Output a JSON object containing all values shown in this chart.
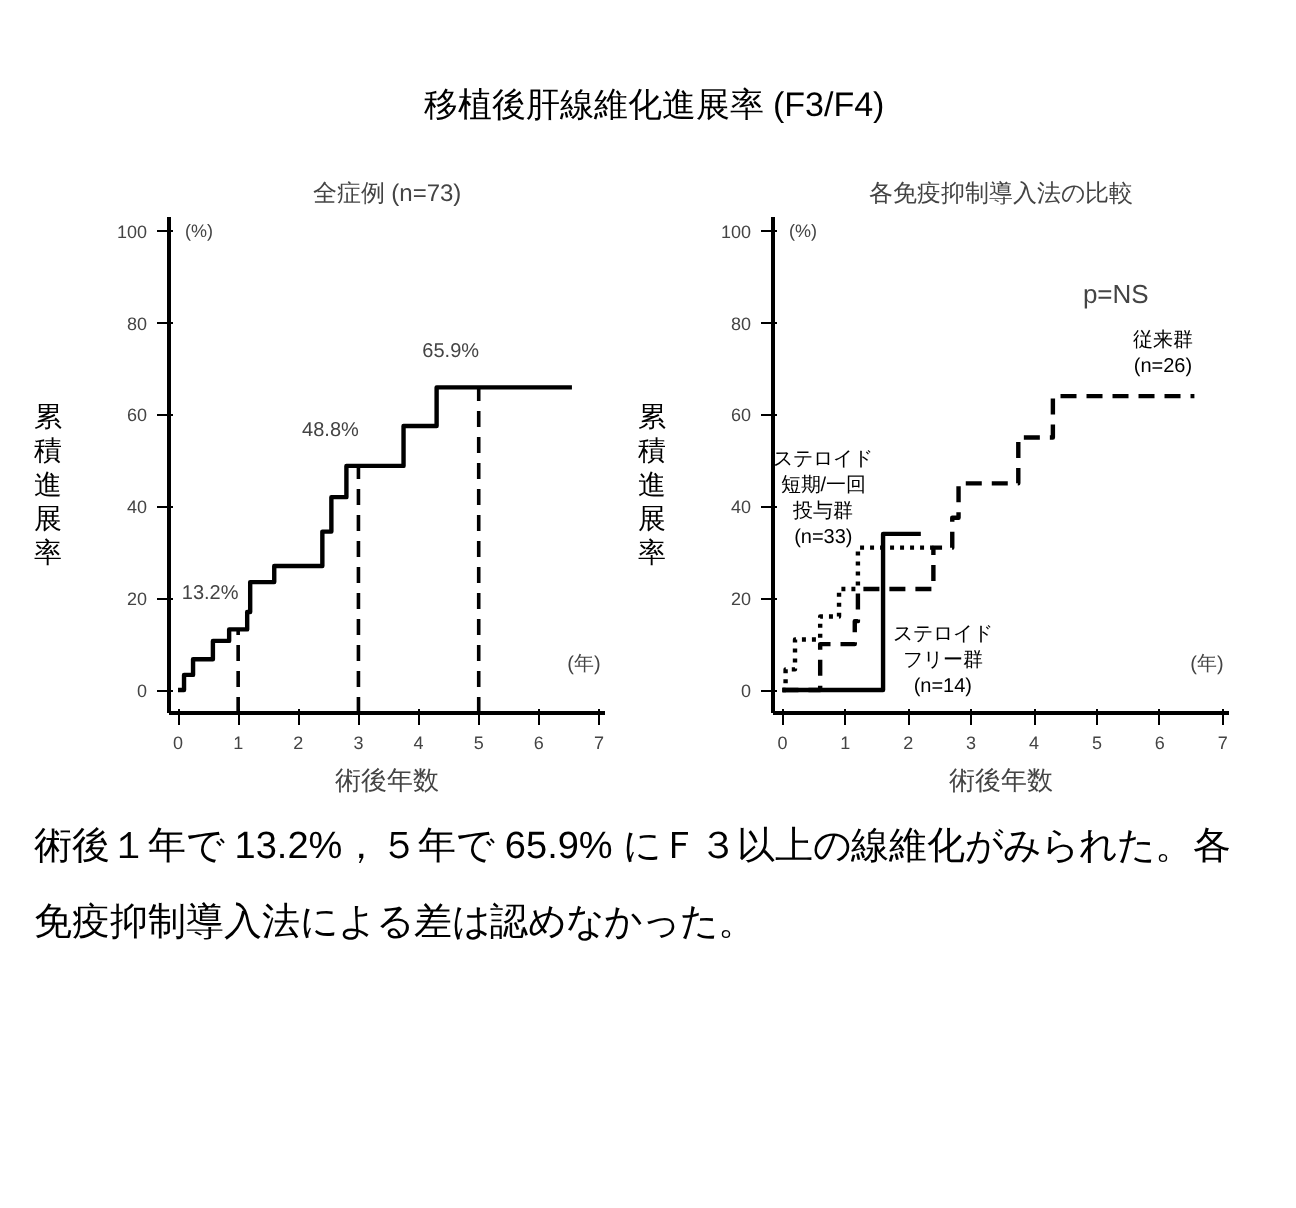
{
  "chart_data": [
    {
      "type": "step",
      "title": "移植後肝線維化進展率 (F3/F4)",
      "subtitle": "全症例 (n=73)",
      "xlabel": "術後年数",
      "ylabel": "累積進展率",
      "xlim": [
        -0.15,
        7.1
      ],
      "ylim": [
        -5,
        103
      ],
      "xticks": [
        0,
        1,
        2,
        3,
        4,
        5,
        6,
        7
      ],
      "yticks": [
        0,
        20,
        40,
        60,
        80,
        100
      ],
      "grid": false,
      "series": [
        {
          "color": "#000000",
          "line_style": "solid",
          "x": [
            0,
            0.1,
            0.25,
            0.58,
            0.85,
            1.15,
            1.2,
            1.6,
            2.4,
            2.55,
            2.8,
            3.75,
            4.3,
            6.55
          ],
          "values": [
            0,
            3.3,
            6.7,
            10.7,
            13.2,
            17,
            23.5,
            27,
            34.5,
            42,
            48.8,
            57.5,
            65.9,
            65.9
          ]
        }
      ],
      "ref_lines": [
        {
          "axis": "x",
          "value": 1,
          "line_style": "dashed"
        },
        {
          "axis": "x",
          "value": 3,
          "line_style": "dashed"
        },
        {
          "axis": "x",
          "value": 5,
          "line_style": "dashed"
        }
      ],
      "annotations": [
        "(%)",
        "(年)",
        {
          "text": "13.2%",
          "x": 1,
          "y": 13.2
        },
        {
          "text": "48.8%",
          "x": 3,
          "y": 48.8
        },
        {
          "text": "65.9%",
          "x": 5,
          "y": 65.9
        }
      ]
    },
    {
      "type": "step",
      "subtitle": "各免疫抑制導入法の比較",
      "xlabel": "術後年数",
      "ylabel": "累積進展率",
      "xlim": [
        -0.15,
        7.1
      ],
      "ylim": [
        -5,
        103
      ],
      "xticks": [
        0,
        1,
        2,
        3,
        4,
        5,
        6,
        7
      ],
      "yticks": [
        0,
        20,
        40,
        60,
        80,
        100
      ],
      "grid": false,
      "series": [
        {
          "name": "ステロイドフリー群(n=14)",
          "color": "#000000",
          "line_style": "solid",
          "x": [
            0,
            1.6,
            2.2
          ],
          "values": [
            0,
            34,
            34
          ]
        },
        {
          "name": "ステロイド短期/一回投与群(n=33)",
          "color": "#000000",
          "line_style": "dotted",
          "x": [
            0,
            0.05,
            0.2,
            0.6,
            0.9,
            1.2,
            2.4
          ],
          "values": [
            0,
            4.5,
            11,
            16,
            22,
            31,
            31
          ]
        },
        {
          "name": "従来群(n=26)",
          "color": "#000000",
          "line_style": "dashed",
          "x": [
            0,
            0.6,
            1.15,
            1.2,
            2.4,
            2.7,
            2.8,
            3.75,
            4.3,
            6.55
          ],
          "values": [
            0,
            10,
            15,
            22,
            31,
            37.5,
            45,
            55,
            64,
            64
          ]
        }
      ],
      "annotations": [
        "(%)",
        "(年)",
        "p=NS",
        "術後１年で 13.2%，５年で 65.9% にＦ３以上の線維化がみられた。各免疫抑制導入法による差は認めなかった。"
      ]
    }
  ]
}
